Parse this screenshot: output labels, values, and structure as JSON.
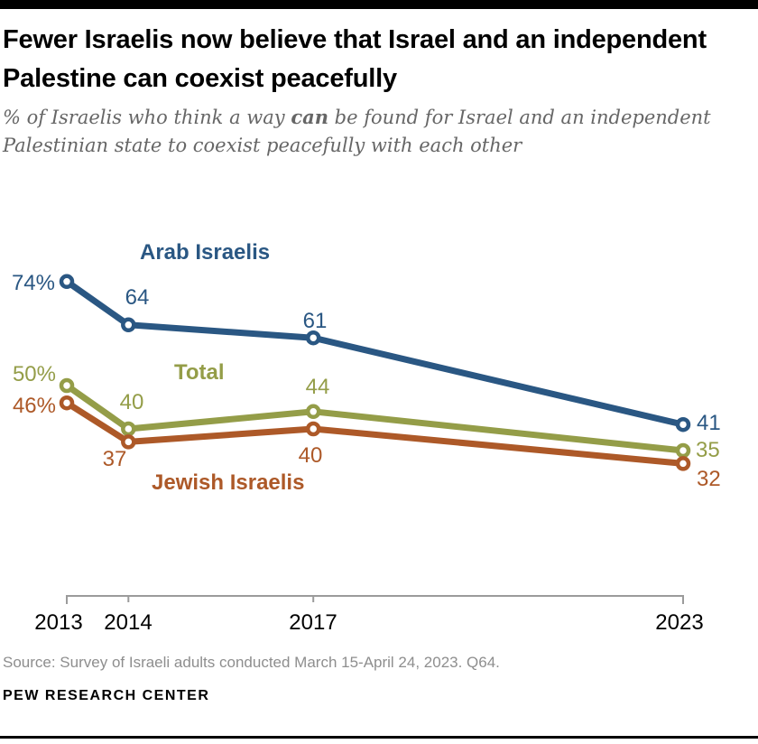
{
  "page": {
    "title": "Fewer Israelis now believe that Israel and an independent Palestine can coexist peacefully",
    "subtitle_prefix": "% of Israelis who think a way ",
    "subtitle_bold": "can",
    "subtitle_suffix": " be found for Israel and an independent Palestinian state to coexist peacefully with each other",
    "source": "Source: Survey of Israeli adults conducted March 15-April 24, 2023. Q64.",
    "branding": "PEW RESEARCH CENTER"
  },
  "chart_data": {
    "type": "line",
    "title": "Fewer Israelis now believe that Israel and an independent Palestine can coexist peacefully",
    "x": [
      2013,
      2014,
      2017,
      2023
    ],
    "x_tick_labels": [
      "2013",
      "2014",
      "2017",
      "2023"
    ],
    "xlim": [
      2013,
      2023
    ],
    "ylim": [
      0,
      87
    ],
    "grid": false,
    "legend": "inline-annotations",
    "first_point_suffix": "%",
    "axis_color": "#9B9B9B",
    "marker_fill": "#FFFFFF",
    "series": [
      {
        "name": "Arab Israelis",
        "color": "#2A5783",
        "values": [
          74,
          64,
          61,
          41
        ]
      },
      {
        "name": "Total",
        "color": "#949D48",
        "values": [
          50,
          40,
          44,
          35
        ]
      },
      {
        "name": "Jewish Israelis",
        "color": "#AD5928",
        "values": [
          46,
          37,
          40,
          32
        ]
      }
    ]
  }
}
